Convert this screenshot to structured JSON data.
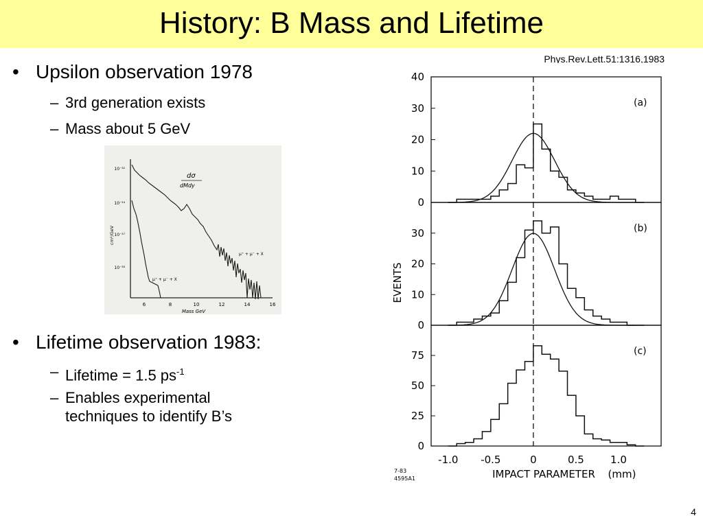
{
  "title": "History: B Mass and Lifetime",
  "citation": "Phys.Rev.Lett.51:1316,1983",
  "bullets": {
    "upsilon": {
      "bullet": "•",
      "text": "Upsilon observation 1978",
      "subs": [
        "3rd generation exists",
        "Mass about 5 GeV"
      ]
    },
    "lifetime": {
      "bullet": "•",
      "text": "Lifetime observation 1983:",
      "sub1_main": "Lifetime = 1.5 ps",
      "sub1_sup": "-1",
      "sub2_line1": "Enables experimental",
      "sub2_line2": "techniques to identify B’s"
    },
    "dash": "–"
  },
  "slide_number": "4",
  "upsilon_plot": {
    "ylabel": "cm²/GeV",
    "formula_num": "dσ",
    "formula_den": "dMdy",
    "curve_label_upper": "μ⁺ + μ⁻ + X",
    "curve_label_lower": "μ⁺ + μ⁻ + X",
    "y_ticks": [
      "10⁻³²",
      "10⁻³⁴",
      "10⁻³⁷",
      "10⁻³⁸"
    ],
    "x_ticks": [
      "6",
      "8",
      "10",
      "12",
      "14",
      "16"
    ],
    "xlabel": "Mass  GeV"
  },
  "chart_data": [
    {
      "type": "bar",
      "panel_label": "(a)",
      "bins": [
        -1.0,
        -0.9,
        -0.8,
        -0.7,
        -0.6,
        -0.5,
        -0.4,
        -0.3,
        -0.2,
        -0.1,
        0.0,
        0.1,
        0.2,
        0.3,
        0.4,
        0.5,
        0.6,
        0.7,
        0.8,
        0.9,
        1.0,
        1.1,
        1.2
      ],
      "values": [
        0,
        1,
        1,
        1,
        1,
        2,
        4,
        6,
        12,
        11,
        25,
        17,
        10,
        8,
        4,
        3,
        2,
        1,
        1,
        2,
        1,
        1,
        0
      ],
      "fit": "gaussian",
      "y_ticks": [
        "0",
        "10",
        "20",
        "30",
        "40"
      ],
      "ylim": [
        0,
        40
      ]
    },
    {
      "type": "bar",
      "panel_label": "(b)",
      "bins": [
        -1.0,
        -0.9,
        -0.8,
        -0.7,
        -0.6,
        -0.5,
        -0.4,
        -0.3,
        -0.2,
        -0.1,
        0.0,
        0.1,
        0.2,
        0.3,
        0.4,
        0.5,
        0.6,
        0.7,
        0.8,
        0.9,
        1.0,
        1.1,
        1.2
      ],
      "values": [
        0,
        1,
        1,
        2,
        3,
        4,
        8,
        14,
        22,
        31,
        34,
        30,
        32,
        20,
        12,
        9,
        5,
        3,
        2,
        1,
        1,
        0,
        0
      ],
      "fit": "gaussian",
      "y_ticks": [
        "0",
        "10",
        "20",
        "30"
      ],
      "ylim": [
        0,
        40
      ]
    },
    {
      "type": "bar",
      "panel_label": "(c)",
      "bins": [
        -1.0,
        -0.9,
        -0.8,
        -0.7,
        -0.6,
        -0.5,
        -0.4,
        -0.3,
        -0.2,
        -0.1,
        0.0,
        0.1,
        0.2,
        0.3,
        0.4,
        0.5,
        0.6,
        0.7,
        0.8,
        0.9,
        1.0,
        1.1,
        1.2
      ],
      "values": [
        0,
        2,
        3,
        6,
        12,
        22,
        35,
        52,
        63,
        70,
        83,
        76,
        72,
        62,
        42,
        25,
        10,
        6,
        5,
        3,
        3,
        1,
        0
      ],
      "y_ticks": [
        "0",
        "25",
        "50",
        "75"
      ],
      "ylim": [
        0,
        100
      ]
    }
  ],
  "lifetime_axes": {
    "ylabel": "EVENTS",
    "xlabel": "IMPACT PARAMETER",
    "xunit": "(mm)",
    "x_ticks": [
      "-1.0",
      "-0.5",
      "0",
      "0.5",
      "1.0"
    ],
    "xlim": [
      -1.2,
      1.5
    ],
    "fig_code_1": "7-83",
    "fig_code_2": "4595A1"
  }
}
